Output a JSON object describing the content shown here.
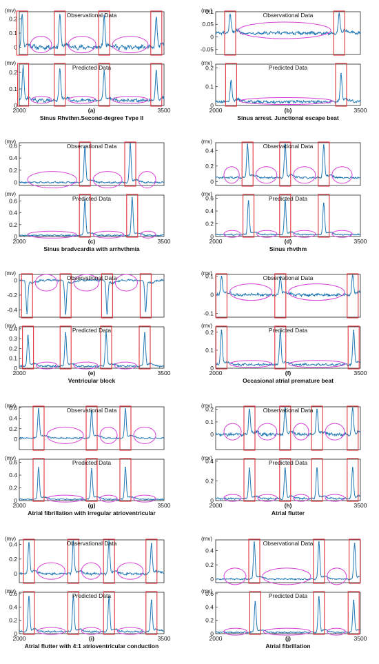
{
  "figure": {
    "x_ticks": [
      "2000",
      "3500"
    ],
    "unit_label": "(mv)",
    "obs_title": "Observational Data",
    "pred_title": "Predicted Data",
    "colors": {
      "signal": "#1f77b4",
      "rect": "#e0303a",
      "ellipse": "#d63fd6",
      "axis": "#222222"
    }
  },
  "chart_data": [
    {
      "id": "a",
      "type": "line",
      "caption_letter": "(a)",
      "caption": "Sinus Rhvthm.Second-degree Tvpe II",
      "x_range": [
        2000,
        3500
      ],
      "observational": {
        "y_ticks": [
          "0.2",
          "0.1",
          "0"
        ],
        "ylim": [
          -0.05,
          0.25
        ],
        "baseline": 0.0,
        "noise": 0.012,
        "peaks": [
          {
            "x": 2030,
            "y": 0.23
          },
          {
            "x": 2420,
            "y": 0.23
          },
          {
            "x": 2880,
            "y": 0.22
          },
          {
            "x": 3420,
            "y": 0.21
          }
        ]
      },
      "predicted": {
        "y_ticks": [
          "0.2",
          "0.1",
          "0"
        ],
        "ylim": [
          0,
          0.25
        ],
        "baseline": 0.03,
        "noise": 0.008,
        "peaks": [
          {
            "x": 2040,
            "y": 0.24
          },
          {
            "x": 2420,
            "y": 0.22
          },
          {
            "x": 2880,
            "y": 0.21
          },
          {
            "x": 3420,
            "y": 0.21
          }
        ]
      }
    },
    {
      "id": "b",
      "type": "line",
      "caption_letter": "(b)",
      "caption": "Sinus arrest. Junctional escape beat",
      "x_range": [
        2000,
        3500
      ],
      "observational": {
        "y_ticks": [
          "0.1",
          "0.05",
          "0",
          "-0.05"
        ],
        "ylim": [
          -0.07,
          0.1
        ],
        "baseline": 0.015,
        "noise": 0.005,
        "peaks": [
          {
            "x": 2150,
            "y": 0.085
          },
          {
            "x": 3280,
            "y": 0.09
          }
        ]
      },
      "predicted": {
        "y_ticks": [
          "0.2",
          "0.1",
          "0"
        ],
        "ylim": [
          0,
          0.22
        ],
        "baseline": 0.02,
        "noise": 0.006,
        "peaks": [
          {
            "x": 2160,
            "y": 0.13
          },
          {
            "x": 3300,
            "y": 0.17
          }
        ]
      }
    },
    {
      "id": "c",
      "type": "line",
      "caption_letter": "(c)",
      "caption": "Sinus bradvcardia with arrhvthmia",
      "x_range": [
        2000,
        3500
      ],
      "observational": {
        "y_ticks": [
          "0.6",
          "0.4",
          "0.2",
          "0"
        ],
        "ylim": [
          -0.05,
          0.65
        ],
        "baseline": 0.0,
        "noise": 0.01,
        "peaks": [
          {
            "x": 2680,
            "y": 0.6
          },
          {
            "x": 3150,
            "y": 0.63
          }
        ]
      },
      "predicted": {
        "y_ticks": [
          "0.6",
          "0.4",
          "0.2",
          "0"
        ],
        "ylim": [
          0,
          0.7
        ],
        "baseline": 0.02,
        "noise": 0.008,
        "peaks": [
          {
            "x": 2680,
            "y": 0.62
          },
          {
            "x": 3170,
            "y": 0.66
          }
        ]
      }
    },
    {
      "id": "d",
      "type": "line",
      "caption_letter": "(d)",
      "caption": "Sinus rhvthm",
      "x_range": [
        2000,
        3500
      ],
      "observational": {
        "y_ticks": [
          "0.4",
          "0.2",
          "0"
        ],
        "ylim": [
          -0.05,
          0.5
        ],
        "baseline": 0.05,
        "noise": 0.01,
        "peaks": [
          {
            "x": 2330,
            "y": 0.48
          },
          {
            "x": 2720,
            "y": 0.48
          },
          {
            "x": 3120,
            "y": 0.47
          }
        ]
      },
      "predicted": {
        "y_ticks": [
          "0.6",
          "0.4",
          "0.2",
          "0"
        ],
        "ylim": [
          0,
          0.65
        ],
        "baseline": 0.03,
        "noise": 0.008,
        "peaks": [
          {
            "x": 2340,
            "y": 0.56
          },
          {
            "x": 2720,
            "y": 0.57
          },
          {
            "x": 3120,
            "y": 0.52
          }
        ]
      }
    },
    {
      "id": "e",
      "type": "line",
      "caption_letter": "(e)",
      "caption": "Ventricular block",
      "x_range": [
        2000,
        3500
      ],
      "observational": {
        "y_ticks": [
          "0",
          "-0.2",
          "-0.4"
        ],
        "ylim": [
          -0.5,
          0.08
        ],
        "baseline": 0.0,
        "noise": 0.01,
        "peaks": [
          {
            "x": 2080,
            "y": -0.45
          },
          {
            "x": 2480,
            "y": -0.45
          },
          {
            "x": 2910,
            "y": -0.45
          },
          {
            "x": 3310,
            "y": -0.42
          }
        ]
      },
      "predicted": {
        "y_ticks": [
          "0.4",
          "0.3",
          "0.2",
          "0.1",
          "0"
        ],
        "ylim": [
          0,
          0.42
        ],
        "baseline": 0.02,
        "noise": 0.007,
        "peaks": [
          {
            "x": 2090,
            "y": 0.33
          },
          {
            "x": 2480,
            "y": 0.36
          },
          {
            "x": 2900,
            "y": 0.36
          },
          {
            "x": 3300,
            "y": 0.36
          }
        ]
      }
    },
    {
      "id": "f",
      "type": "line",
      "caption_letter": "(f)",
      "caption": "Occasional atrial premature beat",
      "x_range": [
        2000,
        3500
      ],
      "observational": {
        "y_ticks": [
          "0.1",
          "0",
          "-0.1"
        ],
        "ylim": [
          -0.12,
          0.11
        ],
        "baseline": 0.0,
        "noise": 0.006,
        "peaks": [
          {
            "x": 2060,
            "y": 0.1
          },
          {
            "x": 2670,
            "y": 0.1
          },
          {
            "x": 3420,
            "y": 0.1
          }
        ]
      },
      "predicted": {
        "y_ticks": [
          "0.2",
          "0.1",
          "0"
        ],
        "ylim": [
          0,
          0.23
        ],
        "baseline": 0.02,
        "noise": 0.005,
        "peaks": [
          {
            "x": 2060,
            "y": 0.21
          },
          {
            "x": 2670,
            "y": 0.21
          },
          {
            "x": 3430,
            "y": 0.21
          }
        ]
      }
    },
    {
      "id": "g",
      "type": "line",
      "caption_letter": "(g)",
      "caption": "Atrial fibrillation with irregular atrioventricular",
      "x_range": [
        2000,
        3500
      ],
      "observational": {
        "y_ticks": [
          "0.6",
          "0.4",
          "0.2",
          "0"
        ],
        "ylim": [
          -0.2,
          0.62
        ],
        "baseline": 0.02,
        "noise": 0.01,
        "peaks": [
          {
            "x": 2200,
            "y": 0.58
          },
          {
            "x": 2750,
            "y": 0.55
          },
          {
            "x": 3100,
            "y": 0.58
          }
        ]
      },
      "predicted": {
        "y_ticks": [
          "0.6",
          "0.4",
          "0.2",
          "0"
        ],
        "ylim": [
          0,
          0.65
        ],
        "baseline": 0.02,
        "noise": 0.008,
        "peaks": [
          {
            "x": 2200,
            "y": 0.52
          },
          {
            "x": 2750,
            "y": 0.5
          },
          {
            "x": 3100,
            "y": 0.52
          }
        ]
      }
    },
    {
      "id": "h",
      "type": "line",
      "caption_letter": "(h)",
      "caption": "Atrial flutter",
      "x_range": [
        2000,
        3500
      ],
      "observational": {
        "y_ticks": [
          "0.2",
          "0.1",
          "0"
        ],
        "ylim": [
          -0.12,
          0.22
        ],
        "baseline": 0.0,
        "noise": 0.01,
        "peaks": [
          {
            "x": 2350,
            "y": 0.2
          },
          {
            "x": 2720,
            "y": 0.21
          },
          {
            "x": 3050,
            "y": 0.2
          },
          {
            "x": 3420,
            "y": 0.21
          }
        ]
      },
      "predicted": {
        "y_ticks": [
          "0.4",
          "0.2",
          "0"
        ],
        "ylim": [
          0,
          0.42
        ],
        "baseline": 0.02,
        "noise": 0.007,
        "peaks": [
          {
            "x": 2350,
            "y": 0.33
          },
          {
            "x": 2720,
            "y": 0.33
          },
          {
            "x": 3050,
            "y": 0.33
          },
          {
            "x": 3420,
            "y": 0.33
          }
        ]
      }
    },
    {
      "id": "i",
      "type": "line",
      "caption_letter": "(i)",
      "caption": "Atrial flutter with 4:1 atrioventricular conduction",
      "x_range": [
        2000,
        3500
      ],
      "observational": {
        "y_ticks": [
          "0.4",
          "0.2",
          "0"
        ],
        "ylim": [
          -0.12,
          0.46
        ],
        "baseline": 0.0,
        "noise": 0.012,
        "peaks": [
          {
            "x": 2100,
            "y": 0.42
          },
          {
            "x": 2560,
            "y": 0.44
          },
          {
            "x": 2930,
            "y": 0.43
          },
          {
            "x": 3370,
            "y": 0.41
          }
        ]
      },
      "predicted": {
        "y_ticks": [
          "0.6",
          "0.4",
          "0.2",
          "0"
        ],
        "ylim": [
          0,
          0.62
        ],
        "baseline": 0.03,
        "noise": 0.01,
        "peaks": [
          {
            "x": 2100,
            "y": 0.55
          },
          {
            "x": 2560,
            "y": 0.56
          },
          {
            "x": 2930,
            "y": 0.55
          },
          {
            "x": 3370,
            "y": 0.5
          }
        ]
      }
    },
    {
      "id": "j",
      "type": "line",
      "caption_letter": "(j)",
      "caption": "Atrial fibrillation",
      "x_range": [
        2000,
        3500
      ],
      "observational": {
        "y_ticks": [
          "0.4",
          "0.2",
          "0"
        ],
        "ylim": [
          -0.05,
          0.55
        ],
        "baseline": 0.0,
        "noise": 0.008,
        "peaks": [
          {
            "x": 2400,
            "y": 0.52
          },
          {
            "x": 3070,
            "y": 0.52
          },
          {
            "x": 3440,
            "y": 0.5
          }
        ]
      },
      "predicted": {
        "y_ticks": [
          "0.6",
          "0.4",
          "0.2",
          "0"
        ],
        "ylim": [
          0,
          0.62
        ],
        "baseline": 0.02,
        "noise": 0.008,
        "peaks": [
          {
            "x": 2410,
            "y": 0.48
          },
          {
            "x": 3070,
            "y": 0.55
          },
          {
            "x": 3430,
            "y": 0.5
          }
        ]
      }
    }
  ]
}
